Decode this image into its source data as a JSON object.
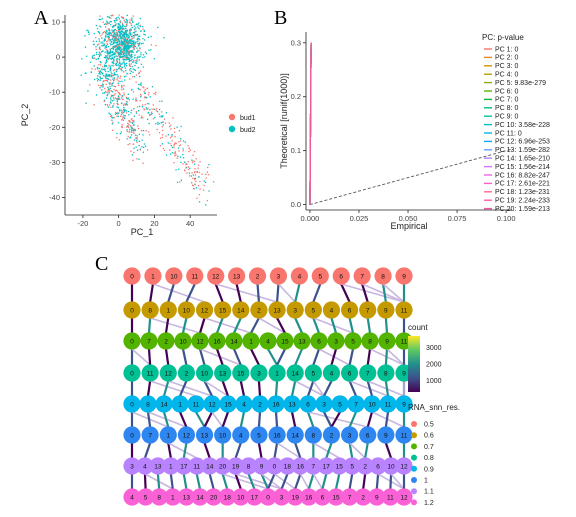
{
  "panels": {
    "a": "A",
    "b": "B",
    "c": "C"
  },
  "chart_data": [
    {
      "type": "scatter",
      "panel": "A",
      "xlabel": "PC_1",
      "ylabel": "PC_2",
      "xlim": [
        -30,
        55
      ],
      "ylim": [
        -45,
        12
      ],
      "xticks": [
        -20,
        0,
        20,
        40
      ],
      "yticks": [
        10,
        0,
        -10,
        -20,
        -30,
        -40
      ],
      "grid": false,
      "legend_position": "right",
      "series": [
        {
          "name": "bud1",
          "color": "#F8766D"
        },
        {
          "name": "bud2",
          "color": "#00BFC4"
        }
      ]
    },
    {
      "type": "scatter",
      "panel": "B",
      "xlabel": "Empirical",
      "ylabel": "Theoretical [runif(1000)]",
      "xlim": [
        -0.002,
        0.103
      ],
      "ylim": [
        -0.01,
        0.32
      ],
      "xticks": [
        "0.000",
        "0.025",
        "0.050",
        "0.075",
        "0.100"
      ],
      "yticks": [
        "0.0",
        "0.1",
        "0.2",
        "0.3"
      ],
      "grid": false,
      "reference_line": {
        "from": [
          0,
          0
        ],
        "to": [
          0.103,
          0.103
        ],
        "style": "dashed"
      },
      "legend_title": "PC: p-value",
      "legend_position": "right",
      "series": [
        {
          "name": "PC 1: 0",
          "color": "#F8766D"
        },
        {
          "name": "PC 2: 0",
          "color": "#E88526"
        },
        {
          "name": "PC 3: 0",
          "color": "#D39200"
        },
        {
          "name": "PC 4: 0",
          "color": "#B79F00"
        },
        {
          "name": "PC 5: 9.83e-279",
          "color": "#93AA00"
        },
        {
          "name": "PC 6: 0",
          "color": "#5EB300"
        },
        {
          "name": "PC 7: 0",
          "color": "#00BA38"
        },
        {
          "name": "PC 8: 0",
          "color": "#00BF74"
        },
        {
          "name": "PC 9: 0",
          "color": "#00C19F"
        },
        {
          "name": "PC 10: 3.58e-228",
          "color": "#00BFC4"
        },
        {
          "name": "PC 11: 0",
          "color": "#00B9E3"
        },
        {
          "name": "PC 12: 6.96e-253",
          "color": "#00ADFA"
        },
        {
          "name": "PC 13: 1.59e-282",
          "color": "#619CFF"
        },
        {
          "name": "PC 14: 1.65e-210",
          "color": "#AE87FF"
        },
        {
          "name": "PC 15: 1.56e-214",
          "color": "#DB72FB"
        },
        {
          "name": "PC 16: 8.82e-247",
          "color": "#F564E3"
        },
        {
          "name": "PC 17: 2.61e-221",
          "color": "#FF61C3"
        },
        {
          "name": "PC 18: 1.23e-231",
          "color": "#FF6C91"
        },
        {
          "name": "PC 19: 2.24e-233",
          "color": "#FF5FA6"
        },
        {
          "name": "PC 20: 1.59e-213",
          "color": "#F0569A"
        }
      ]
    },
    {
      "type": "clustree",
      "panel": "C",
      "resolutions": [
        {
          "res": "0.5",
          "color": "#F8766D",
          "labels": [
            "0",
            "1",
            "10",
            "11",
            "12",
            "13",
            "2",
            "3",
            "4",
            "5",
            "6",
            "7",
            "8",
            "9"
          ]
        },
        {
          "res": "0.6",
          "color": "#C49A00",
          "labels": [
            "0",
            "8",
            "1",
            "10",
            "12",
            "15",
            "14",
            "2",
            "13",
            "3",
            "5",
            "4",
            "6",
            "7",
            "9",
            "11"
          ]
        },
        {
          "res": "0.7",
          "color": "#53B400",
          "labels": [
            "0",
            "7",
            "2",
            "10",
            "12",
            "16",
            "14",
            "1",
            "4",
            "15",
            "13",
            "6",
            "3",
            "5",
            "8",
            "9",
            "11"
          ]
        },
        {
          "res": "0.8",
          "color": "#00C094",
          "labels": [
            "0",
            "11",
            "12",
            "2",
            "10",
            "13",
            "15",
            "3",
            "1",
            "14",
            "5",
            "4",
            "6",
            "7",
            "8",
            "9"
          ]
        },
        {
          "res": "0.9",
          "color": "#00B6EB",
          "labels": [
            "0",
            "8",
            "14",
            "1",
            "11",
            "12",
            "15",
            "4",
            "2",
            "16",
            "13",
            "6",
            "3",
            "5",
            "7",
            "10",
            "11",
            "9"
          ]
        },
        {
          "res": "1",
          "color": "#2E86F0",
          "labels": [
            "0",
            "7",
            "1",
            "12",
            "13",
            "10",
            "4",
            "5",
            "16",
            "14",
            "8",
            "2",
            "3",
            "6",
            "9",
            "11"
          ]
        },
        {
          "res": "1.1",
          "color": "#B983FF",
          "labels": [
            "3",
            "4",
            "13",
            "1",
            "17",
            "11",
            "14",
            "20",
            "19",
            "8",
            "9",
            "0",
            "18",
            "16",
            "7",
            "17",
            "15",
            "5",
            "2",
            "6",
            "10",
            "12"
          ]
        },
        {
          "res": "1.2",
          "color": "#FB61D7",
          "labels": [
            "4",
            "5",
            "8",
            "1",
            "13",
            "14",
            "20",
            "18",
            "10",
            "17",
            "0",
            "3",
            "19",
            "16",
            "6",
            "15",
            "7",
            "2",
            "9",
            "11",
            "12"
          ]
        }
      ],
      "count_legend": {
        "title": "count",
        "ticks": [
          1000,
          2000,
          3000
        ]
      },
      "res_legend_title": "RNA_snn_res."
    }
  ]
}
